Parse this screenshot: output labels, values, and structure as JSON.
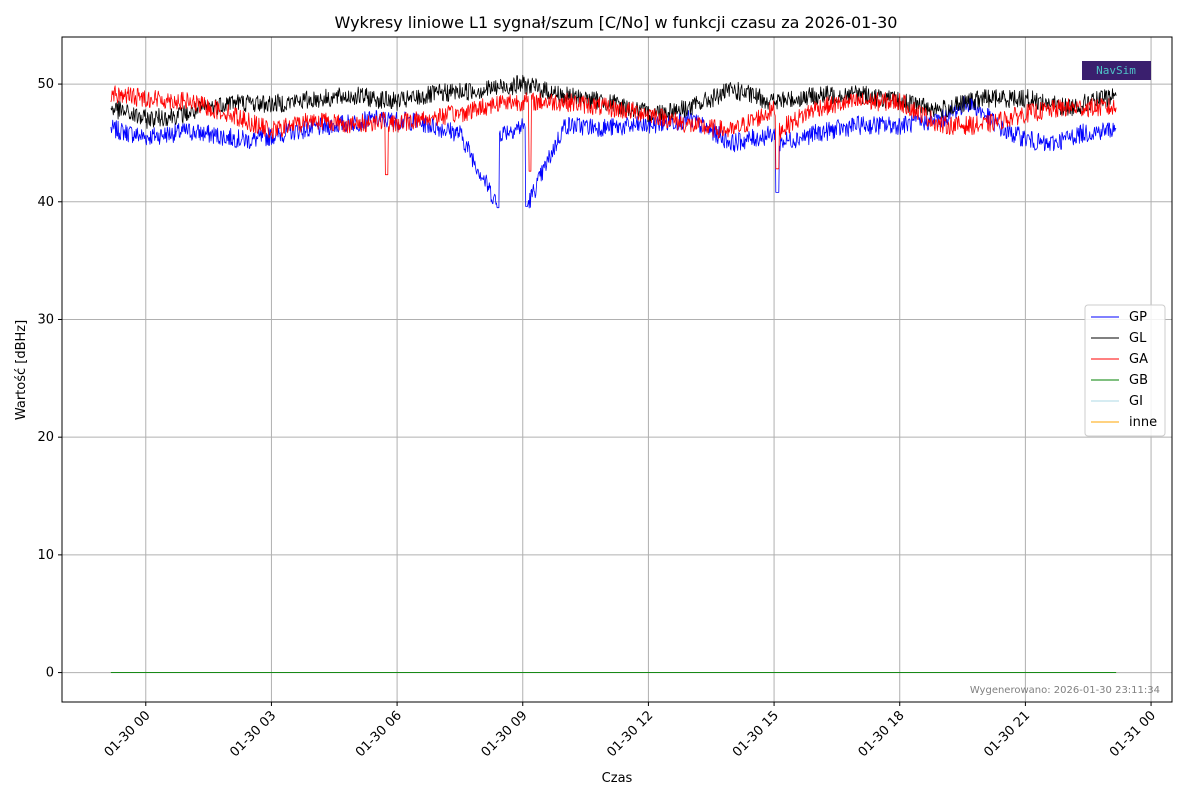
{
  "chart_data": {
    "type": "line",
    "title": "Wykresy liniowe L1 sygnał/szum [C/No] w funkcji czasu za 2026-01-30",
    "xlabel": "Czas",
    "ylabel": "Wartość [dBHz]",
    "x_range": [
      "2026-01-29 22:00",
      "2026-01-31 00:30"
    ],
    "ylim": [
      -2.5,
      54
    ],
    "x_ticks": [
      "01-30 00",
      "01-30 03",
      "01-30 06",
      "01-30 09",
      "01-30 12",
      "01-30 15",
      "01-30 18",
      "01-30 21",
      "01-31 00"
    ],
    "y_ticks": [
      0,
      10,
      20,
      30,
      40,
      50
    ],
    "grid": true,
    "legend_position": "center-right",
    "series": [
      {
        "name": "GP",
        "color": "#0000ff",
        "x": [
          "2026-01-29 23:10",
          "2026-01-30 00:00",
          "2026-01-30 01:00",
          "2026-01-30 02:30",
          "2026-01-30 03:30",
          "2026-01-30 04:30",
          "2026-01-30 05:30",
          "2026-01-30 06:30",
          "2026-01-30 07:30",
          "2026-01-30 08:25",
          "2026-01-30 09:05",
          "2026-01-30 10:00",
          "2026-01-30 11:00",
          "2026-01-30 12:00",
          "2026-01-30 13:00",
          "2026-01-30 14:00",
          "2026-01-30 15:05",
          "2026-01-30 16:00",
          "2026-01-30 17:00",
          "2026-01-30 18:00",
          "2026-01-30 19:00",
          "2026-01-30 19:40",
          "2026-01-30 20:30",
          "2026-01-30 21:30",
          "2026-01-30 22:20",
          "2026-01-30 23:10"
        ],
        "y": [
          46.2,
          45.5,
          46.0,
          45.2,
          46.0,
          46.5,
          47.0,
          46.8,
          45.8,
          39.5,
          39.6,
          46.5,
          46.3,
          46.5,
          47.0,
          45.0,
          40.8,
          45.8,
          46.5,
          46.5,
          47.0,
          48.5,
          46.0,
          44.8,
          45.8,
          46.2
        ],
        "y_base": 0
      },
      {
        "name": "GL",
        "color": "#000000",
        "x": [
          "2026-01-29 23:10",
          "2026-01-30 00:00",
          "2026-01-30 01:00",
          "2026-01-30 02:00",
          "2026-01-30 03:00",
          "2026-01-30 04:00",
          "2026-01-30 05:00",
          "2026-01-30 06:00",
          "2026-01-30 07:00",
          "2026-01-30 08:00",
          "2026-01-30 09:00",
          "2026-01-30 10:00",
          "2026-01-30 11:00",
          "2026-01-30 12:00",
          "2026-01-30 13:00",
          "2026-01-30 14:00",
          "2026-01-30 15:00",
          "2026-01-30 16:00",
          "2026-01-30 17:00",
          "2026-01-30 18:00",
          "2026-01-30 19:00",
          "2026-01-30 20:00",
          "2026-01-30 21:00",
          "2026-01-30 22:00",
          "2026-01-30 23:10"
        ],
        "y": [
          48.0,
          47.0,
          47.5,
          48.5,
          48.3,
          48.7,
          49.0,
          48.5,
          49.2,
          49.5,
          50.0,
          49.0,
          48.5,
          47.5,
          48.0,
          49.5,
          48.5,
          49.0,
          49.2,
          48.5,
          47.8,
          48.8,
          48.8,
          48.0,
          49.0
        ],
        "y_base": 0
      },
      {
        "name": "GA",
        "color": "#ff0000",
        "x": [
          "2026-01-29 23:10",
          "2026-01-30 00:00",
          "2026-01-30 01:00",
          "2026-01-30 02:00",
          "2026-01-30 03:00",
          "2026-01-30 04:00",
          "2026-01-30 05:00",
          "2026-01-30 05:45",
          "2026-01-30 06:30",
          "2026-01-30 07:30",
          "2026-01-30 08:30",
          "2026-01-30 09:10",
          "2026-01-30 10:00",
          "2026-01-30 11:00",
          "2026-01-30 12:00",
          "2026-01-30 13:00",
          "2026-01-30 14:00",
          "2026-01-30 15:05",
          "2026-01-30 16:00",
          "2026-01-30 17:00",
          "2026-01-30 18:00",
          "2026-01-30 19:00",
          "2026-01-30 20:00",
          "2026-01-30 21:00",
          "2026-01-30 22:00",
          "2026-01-30 23:10"
        ],
        "y": [
          49.2,
          48.8,
          48.5,
          47.5,
          46.0,
          47.0,
          46.5,
          42.3,
          47.0,
          47.5,
          48.5,
          42.6,
          48.5,
          48.0,
          47.5,
          46.5,
          46.0,
          42.8,
          48.0,
          48.5,
          48.5,
          46.5,
          46.5,
          47.5,
          48.0,
          48.0
        ],
        "y_base": 0
      },
      {
        "name": "GB",
        "color": "#008000",
        "x": [
          "2026-01-29 23:10",
          "2026-01-30 23:10"
        ],
        "y": [
          0,
          0
        ]
      },
      {
        "name": "GI",
        "color": "#add8e6",
        "x": [
          "2026-01-29 23:10",
          "2026-01-30 23:10"
        ],
        "y": [
          0,
          0
        ]
      },
      {
        "name": "inne",
        "color": "#ffa500",
        "x": [
          "2026-01-29 23:10",
          "2026-01-30 23:10"
        ],
        "y": [
          0,
          0
        ]
      }
    ],
    "footer": "Wygenerowano: 2026-01-30 23:11:34",
    "logo_text": "NavSim"
  }
}
